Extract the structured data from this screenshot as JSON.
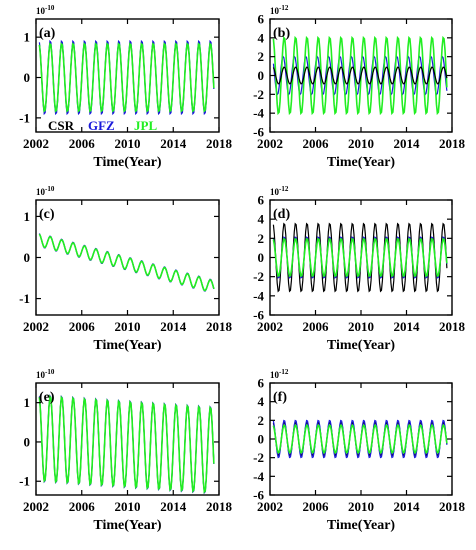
{
  "figure": {
    "series_colors": {
      "CSR": "#000000",
      "GFZ": "#1a1adb",
      "JPL": "#22ee22"
    },
    "legend": [
      "CSR",
      "GFZ",
      "JPL"
    ]
  },
  "chart_data": [
    {
      "type": "line",
      "panel_label": "(a)",
      "exponent": "10-10",
      "xlabel": "Time(Year)",
      "ylabel": "",
      "xlim": [
        2002,
        2018
      ],
      "ylim": [
        -1.35,
        1.45
      ],
      "xticks": [
        2002,
        2006,
        2010,
        2014,
        2018
      ],
      "yticks": [
        1,
        0,
        -1
      ],
      "ytick_labels": [
        "1",
        "0",
        "-1"
      ],
      "legend": "bottom-left",
      "annual": {
        "amplitude": 0.85,
        "offset": 0.0,
        "trend": 0.0,
        "start": 2002.3,
        "end": 2017.6
      },
      "series": [
        {
          "name": "CSR",
          "amp_scale": 1.0
        },
        {
          "name": "GFZ",
          "amp_scale": 1.08
        },
        {
          "name": "JPL",
          "amp_scale": 1.0
        }
      ]
    },
    {
      "type": "line",
      "panel_label": "(b)",
      "exponent": "10-12",
      "xlabel": "Time(Year)",
      "ylabel": "",
      "xlim": [
        2002,
        2018
      ],
      "ylim": [
        -6,
        6
      ],
      "xticks": [
        2002,
        2006,
        2010,
        2014,
        2018
      ],
      "yticks": [
        6,
        4,
        2,
        0,
        -2,
        -4,
        -6
      ],
      "ytick_labels": [
        "6",
        "4",
        "2",
        "0",
        "-2",
        "-4",
        "-6"
      ],
      "legend": "none",
      "annual": {
        "amplitude": 4.1,
        "offset": 0.0,
        "trend": 0.0,
        "start": 2002.3,
        "end": 2017.6
      },
      "series": [
        {
          "name": "CSR",
          "amp_scale": 0.22
        },
        {
          "name": "GFZ",
          "amp_scale": 0.5
        },
        {
          "name": "JPL",
          "amp_scale": 1.0
        }
      ]
    },
    {
      "type": "line",
      "panel_label": "(c)",
      "exponent": "10-10",
      "xlabel": "Time(Year)",
      "ylabel": "",
      "xlim": [
        2002,
        2018
      ],
      "ylim": [
        -1.4,
        1.4
      ],
      "xticks": [
        2002,
        2006,
        2010,
        2014,
        2018
      ],
      "yticks": [
        1,
        0,
        -1
      ],
      "ytick_labels": [
        "1",
        "0",
        "-1"
      ],
      "legend": "none",
      "annual": {
        "amplitude": 0.15,
        "offset": 0.45,
        "trend": -0.075,
        "start": 2002.3,
        "end": 2017.6
      },
      "series": [
        {
          "name": "CSR",
          "amp_scale": 1.0
        },
        {
          "name": "GFZ",
          "amp_scale": 1.1
        },
        {
          "name": "JPL",
          "amp_scale": 1.0
        }
      ]
    },
    {
      "type": "line",
      "panel_label": "(d)",
      "exponent": "10-12",
      "xlabel": "Time(Year)",
      "ylabel": "",
      "xlim": [
        2002,
        2018
      ],
      "ylim": [
        -6,
        6
      ],
      "xticks": [
        2002,
        2006,
        2010,
        2014,
        2018
      ],
      "yticks": [
        6,
        4,
        2,
        0,
        -2,
        -4,
        -6
      ],
      "ytick_labels": [
        "6",
        "4",
        "2",
        "0",
        "-2",
        "-4",
        "-6"
      ],
      "legend": "none",
      "annual": {
        "amplitude": 3.6,
        "offset": 0.0,
        "trend": 0.0,
        "start": 2002.3,
        "end": 2017.6
      },
      "series": [
        {
          "name": "CSR",
          "amp_scale": 1.0
        },
        {
          "name": "GFZ",
          "amp_scale": 0.6
        },
        {
          "name": "JPL",
          "amp_scale": 0.55
        }
      ]
    },
    {
      "type": "line",
      "panel_label": "(e)",
      "exponent": "10-10",
      "xlabel": "Time(Year)",
      "ylabel": "",
      "xlim": [
        2002,
        2018
      ],
      "ylim": [
        -1.35,
        1.5
      ],
      "xticks": [
        2002,
        2006,
        2010,
        2014,
        2018
      ],
      "yticks": [
        1,
        0,
        -1
      ],
      "ytick_labels": [
        "1",
        "0",
        "-1"
      ],
      "legend": "none",
      "annual": {
        "amplitude": 1.1,
        "offset": 0.1,
        "trend": -0.02,
        "start": 2002.3,
        "end": 2017.6
      },
      "series": [
        {
          "name": "CSR",
          "amp_scale": 1.0
        },
        {
          "name": "GFZ",
          "amp_scale": 1.02
        },
        {
          "name": "JPL",
          "amp_scale": 1.0
        }
      ]
    },
    {
      "type": "line",
      "panel_label": "(f)",
      "exponent": "10-12",
      "xlabel": "Time(Year)",
      "ylabel": "",
      "xlim": [
        2002,
        2018
      ],
      "ylim": [
        -6,
        6
      ],
      "xticks": [
        2002,
        2006,
        2010,
        2014,
        2018
      ],
      "yticks": [
        6,
        4,
        2,
        0,
        -2,
        -4,
        -6
      ],
      "ytick_labels": [
        "6",
        "4",
        "2",
        "0",
        "-2",
        "-4",
        "-6"
      ],
      "legend": "none",
      "annual": {
        "amplitude": 1.5,
        "offset": 0.0,
        "trend": 0.0,
        "start": 2002.3,
        "end": 2017.6
      },
      "series": [
        {
          "name": "CSR",
          "amp_scale": 1.2
        },
        {
          "name": "GFZ",
          "amp_scale": 1.35
        },
        {
          "name": "JPL",
          "amp_scale": 1.0
        }
      ]
    }
  ]
}
